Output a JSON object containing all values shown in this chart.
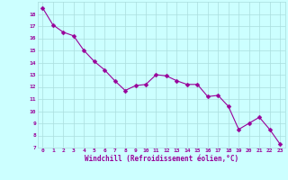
{
  "x": [
    0,
    1,
    2,
    3,
    4,
    5,
    6,
    7,
    8,
    9,
    10,
    11,
    12,
    13,
    14,
    15,
    16,
    17,
    18,
    19,
    20,
    21,
    22,
    23
  ],
  "y": [
    18.5,
    17.1,
    16.5,
    16.2,
    15.0,
    14.1,
    13.4,
    12.5,
    11.7,
    12.1,
    12.2,
    13.0,
    12.9,
    12.5,
    12.2,
    12.2,
    11.2,
    11.3,
    10.4,
    8.5,
    9.0,
    9.5,
    8.5,
    7.3
  ],
  "line_color": "#990099",
  "marker": "D",
  "marker_size": 2.5,
  "bg_color": "#ccffff",
  "grid_color": "#aadddd",
  "xlabel": "Windchill (Refroidissement éolien,°C)",
  "xlabel_color": "#990099",
  "tick_color": "#990099",
  "ylim": [
    7,
    19
  ],
  "xlim": [
    -0.5,
    23.5
  ],
  "yticks": [
    7,
    8,
    9,
    10,
    11,
    12,
    13,
    14,
    15,
    16,
    17,
    18
  ],
  "xticks": [
    0,
    1,
    2,
    3,
    4,
    5,
    6,
    7,
    8,
    9,
    10,
    11,
    12,
    13,
    14,
    15,
    16,
    17,
    18,
    19,
    20,
    21,
    22,
    23
  ]
}
